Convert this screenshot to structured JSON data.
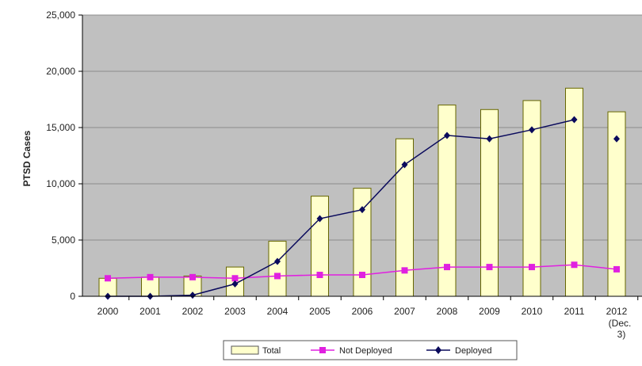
{
  "chart_data": {
    "type": "bar",
    "ylabel": "PTSD Cases",
    "ylim": [
      0,
      25000
    ],
    "yticks": [
      "0",
      "5,000",
      "10,000",
      "15,000",
      "20,000",
      "25,000"
    ],
    "ytick_values": [
      0,
      5000,
      10000,
      15000,
      20000,
      25000
    ],
    "categories": [
      "2000",
      "2001",
      "2002",
      "2003",
      "2004",
      "2005",
      "2006",
      "2007",
      "2008",
      "2009",
      "2010",
      "2011",
      "2012"
    ],
    "category_sublabels": [
      "",
      "",
      "",
      "",
      "",
      "",
      "",
      "",
      "",
      "",
      "",
      "",
      "(Dec."
    ],
    "category_sublabels2": [
      "",
      "",
      "",
      "",
      "",
      "",
      "",
      "",
      "",
      "",
      "",
      "",
      "3)"
    ],
    "grid": true,
    "legend_position": "bottom",
    "series": [
      {
        "name": "Total",
        "kind": "bar",
        "color": "#ffffcc",
        "values": [
          1600,
          1700,
          1800,
          2600,
          4900,
          8900,
          9600,
          14000,
          17000,
          16600,
          17400,
          18500,
          16400
        ]
      },
      {
        "name": "Not Deployed",
        "kind": "line",
        "color": "#e020e0",
        "marker": "square",
        "values": [
          1600,
          1700,
          1700,
          1600,
          1800,
          1900,
          1900,
          2300,
          2600,
          2600,
          2600,
          2800,
          2400
        ]
      },
      {
        "name": "Deployed",
        "kind": "line",
        "color": "#0a0a5c",
        "marker": "diamond",
        "values": [
          0,
          0,
          100,
          1100,
          3100,
          6900,
          7700,
          11700,
          14300,
          14000,
          14800,
          15700,
          14000
        ]
      }
    ],
    "colors": {
      "plot_bg": "#c0c0c0",
      "grid": "#8c8c8c",
      "bar_stroke": "#666600"
    }
  }
}
